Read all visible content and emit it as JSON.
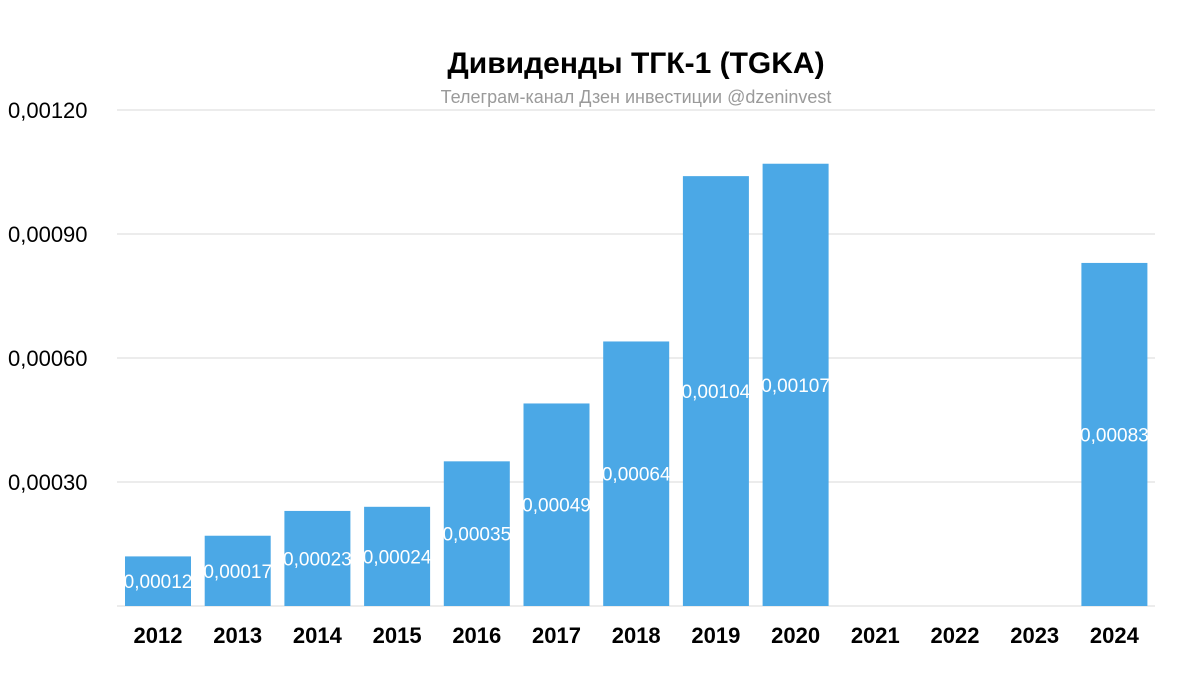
{
  "chart_data": {
    "type": "bar",
    "title": "Дивиденды ТГК-1 (TGKA)",
    "subtitle": "Телеграм-канал Дзен инвестиции @dzeninvest",
    "xlabel": "",
    "ylabel": "",
    "ylim": [
      0,
      0.0012
    ],
    "yticks": [
      0,
      0.0003,
      0.0006,
      0.0009,
      0.0012
    ],
    "ytick_labels": [
      "0,00030",
      "0,00060",
      "0,00090",
      "0,00120"
    ],
    "grid": true,
    "bar_color": "#4BA8E6",
    "categories": [
      "2012",
      "2013",
      "2014",
      "2015",
      "2016",
      "2017",
      "2018",
      "2019",
      "2020",
      "2021",
      "2022",
      "2023",
      "2024"
    ],
    "values": [
      0.00012,
      0.00017,
      0.00023,
      0.00024,
      0.00035,
      0.00049,
      0.00064,
      0.00104,
      0.00107,
      null,
      null,
      null,
      0.00083
    ],
    "data_labels": [
      "0,00012",
      "0,00017",
      "0,00023",
      "0,00024",
      "0,00035",
      "0,00049",
      "0,00064",
      "0,00104",
      "0,00107",
      "",
      "",
      "",
      "0,00083"
    ]
  }
}
